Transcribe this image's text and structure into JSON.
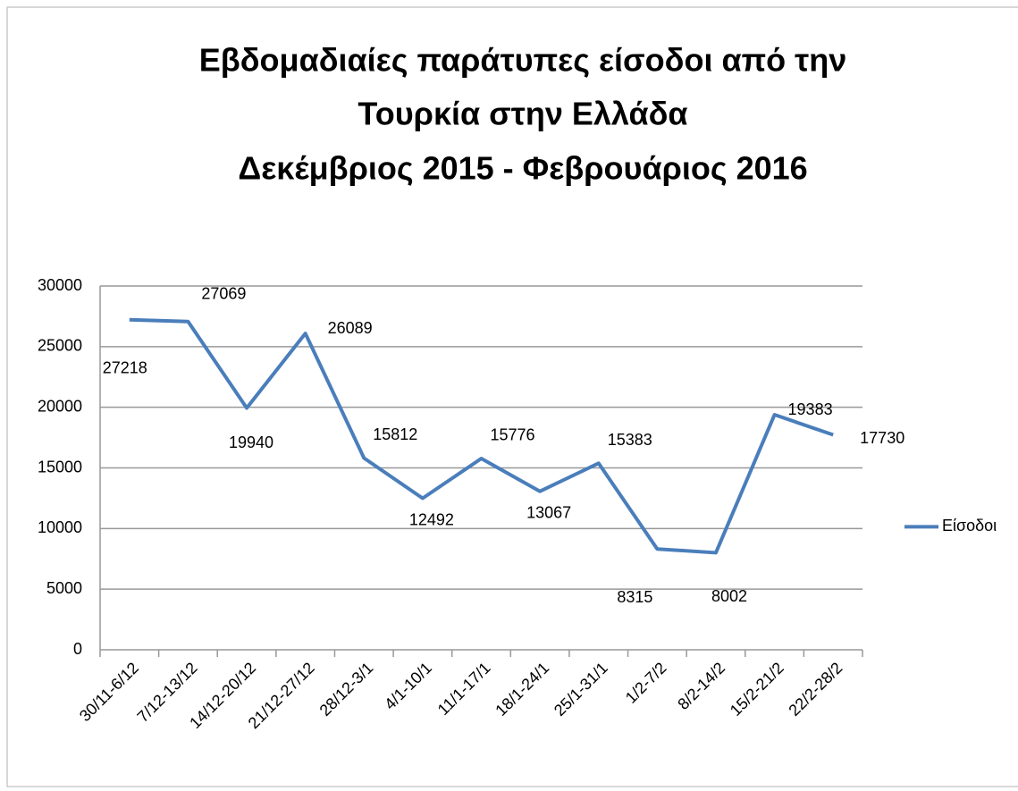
{
  "chart_data": {
    "type": "line",
    "title": [
      "Εβδομαδιαίες παράτυπες είσοδοι από την",
      "Τουρκία στην Ελλάδα",
      "Δεκέμβριος 2015 - Φεβρουάριος 2016"
    ],
    "categories": [
      "30/11-6/12",
      "7/12-13/12",
      "14/12-20/12",
      "21/12-27/12",
      "28/12-3/1",
      "4/1-10/1",
      "11/1-17/1",
      "18/1-24/1",
      "25/1-31/1",
      "1/2-7/2",
      "8/2-14/2",
      "15/2-21/2",
      "22/2-28/2"
    ],
    "series": [
      {
        "name": "Είσοδοι",
        "color": "#4a7ebb",
        "values": [
          27218,
          27069,
          19940,
          26089,
          15812,
          12492,
          15776,
          13067,
          15383,
          8315,
          8002,
          19383,
          17730
        ]
      }
    ],
    "ylim": [
      0,
      30000
    ],
    "yticks": [
      0,
      5000,
      10000,
      15000,
      20000,
      25000,
      30000
    ],
    "grid": true,
    "legend": "right"
  }
}
